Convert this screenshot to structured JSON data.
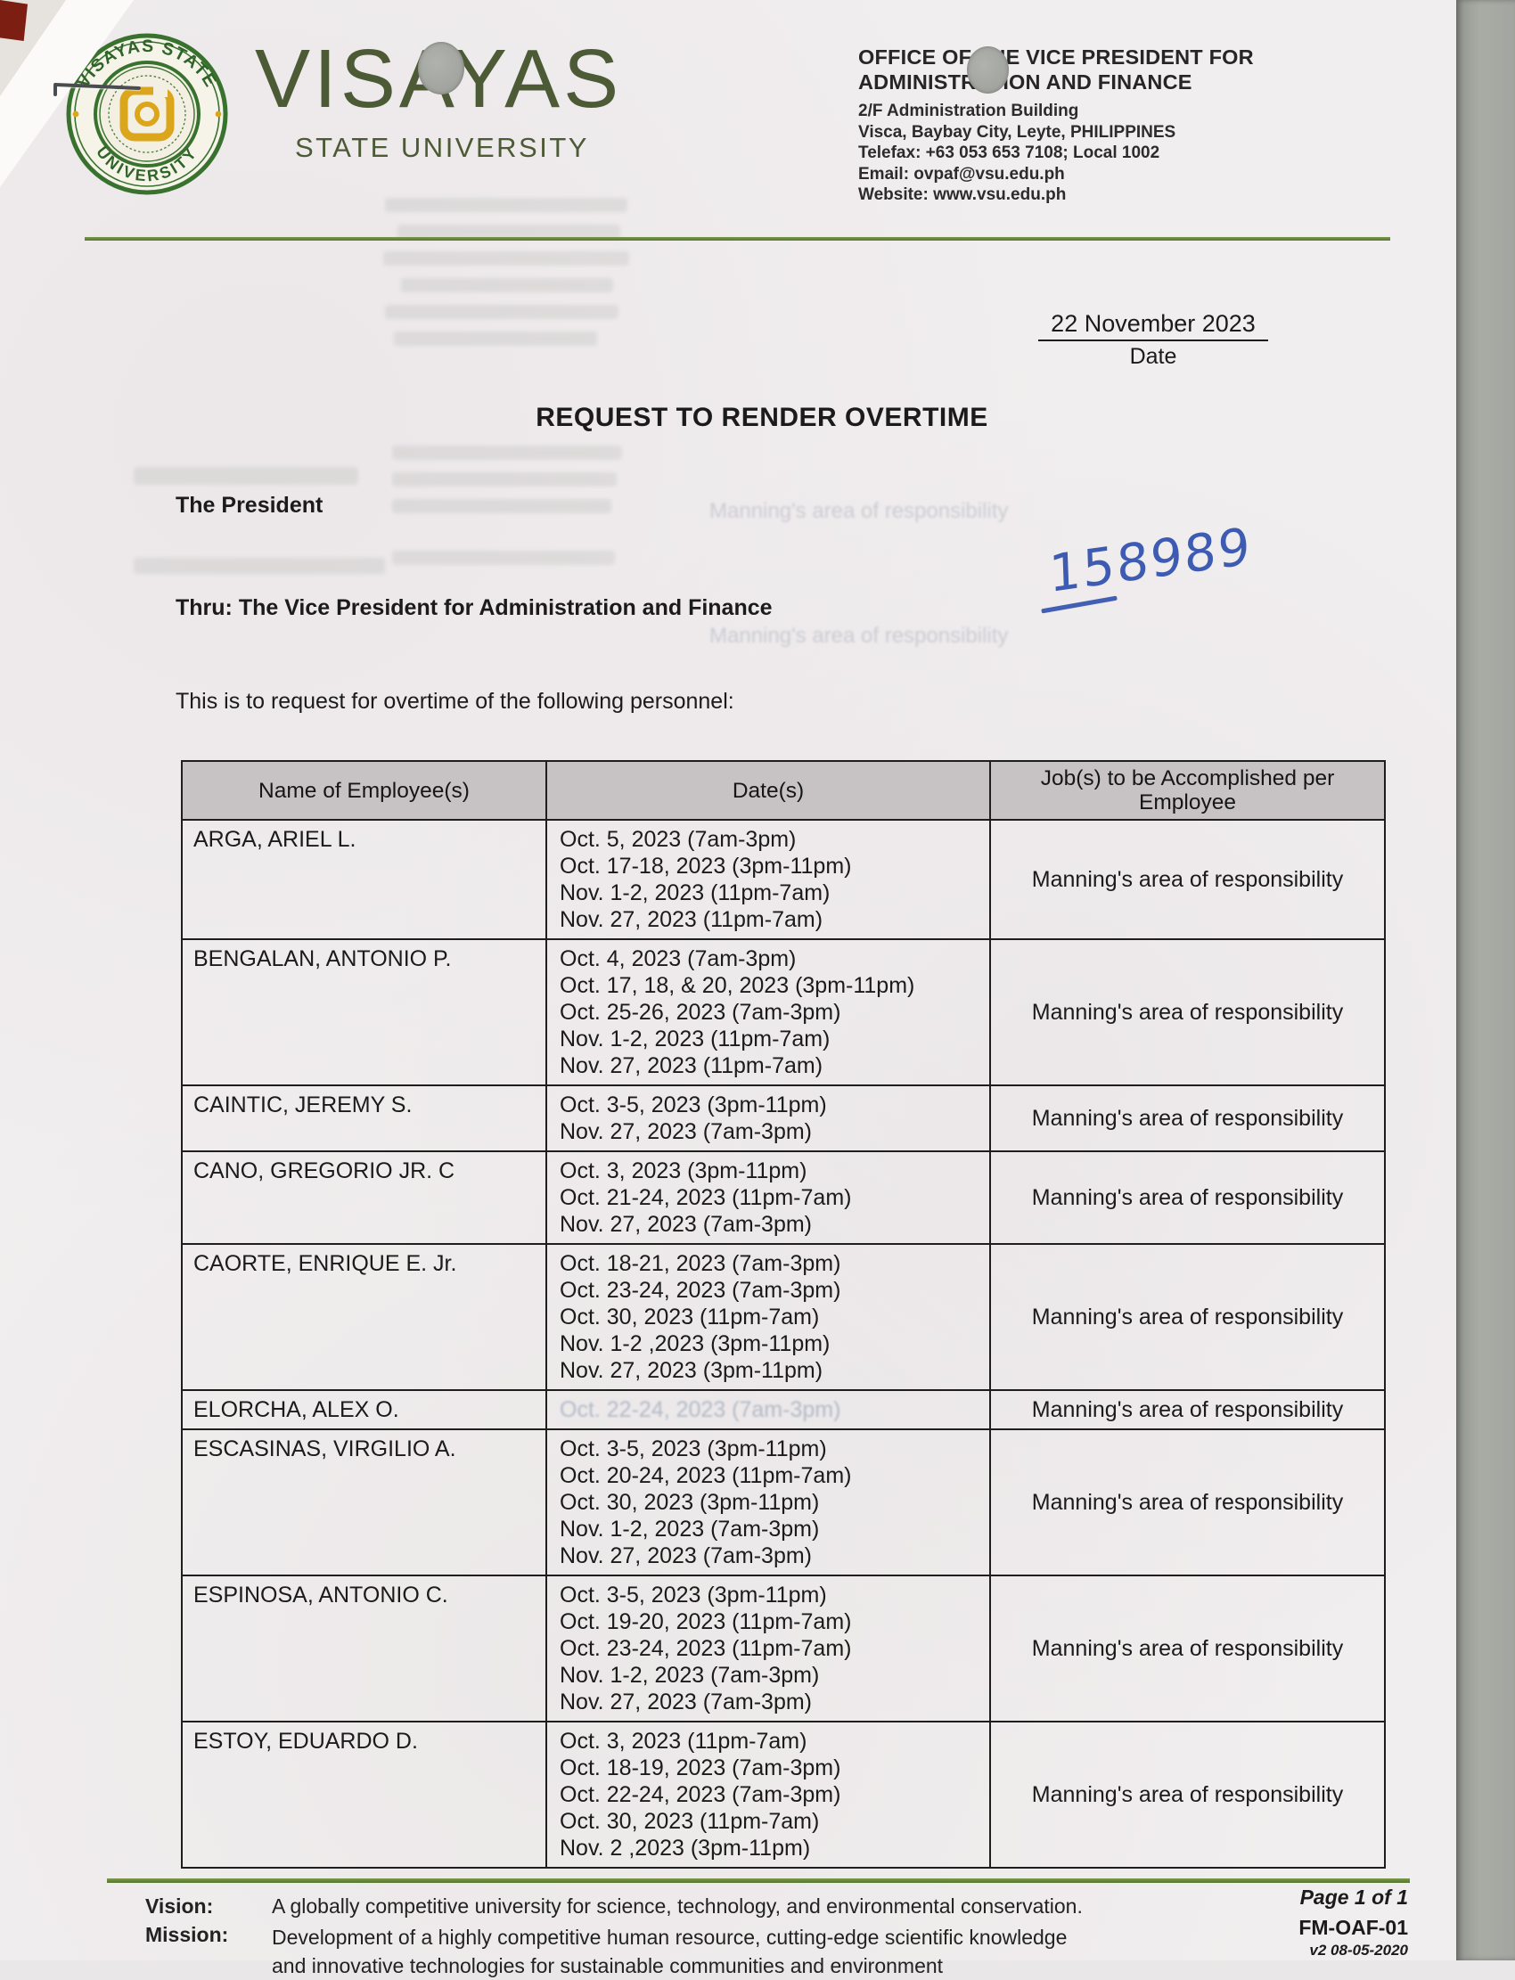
{
  "header": {
    "seal": {
      "top_text": "VISAYAS STATE",
      "bottom_text": "UNIVERSITY",
      "ring_color": "#39722f",
      "emblem_color": "#dca61c"
    },
    "wordmark": "VISAYAS",
    "wordmark_sub": "STATE UNIVERSITY",
    "wordmark_color": "#4c5a35",
    "office": {
      "title_line1": "OFFICE OF THE VICE PRESIDENT FOR",
      "title_line2": "ADMINISTRATION AND FINANCE",
      "address_lines": [
        "2/F Administration Building",
        "Visca, Baybay City, Leyte, PHILIPPINES",
        "Telefax: +63 053 653 7108; Local 1002",
        "Email: ovpaf@vsu.edu.ph",
        "Website: www.vsu.edu.ph"
      ]
    },
    "rule_color": "#55742e"
  },
  "date_block": {
    "value": "22 November 2023",
    "label": "Date"
  },
  "document_title": "REQUEST TO RENDER OVERTIME",
  "addressee": "The President",
  "thru": "Thru: The Vice President for Administration and Finance",
  "intro": "This is to request for overtime of the following personnel:",
  "handwritten_number": {
    "value": "158989",
    "ink_color": "#2f4fae"
  },
  "table": {
    "headers": [
      "Name of Employee(s)",
      "Date(s)",
      "Job(s) to be Accomplished per Employee"
    ],
    "header_bg": "#c7c3c5",
    "rows": [
      {
        "name": "ARGA, ARIEL L.",
        "dates": [
          "Oct. 5, 2023 (7am-3pm)",
          "Oct. 17-18, 2023 (3pm-11pm)",
          "Nov. 1-2, 2023 (11pm-7am)",
          "Nov. 27, 2023 (11pm-7am)"
        ],
        "job": "Manning's area of responsibility"
      },
      {
        "name": "BENGALAN, ANTONIO P.",
        "dates": [
          "Oct. 4, 2023 (7am-3pm)",
          "Oct. 17, 18, & 20, 2023 (3pm-11pm)",
          "Oct. 25-26, 2023 (7am-3pm)",
          "Nov. 1-2, 2023 (11pm-7am)",
          "Nov. 27, 2023 (11pm-7am)"
        ],
        "job": "Manning's area of responsibility"
      },
      {
        "name": "CAINTIC, JEREMY S.",
        "dates": [
          "Oct. 3-5, 2023 (3pm-11pm)",
          "Nov. 27, 2023 (7am-3pm)"
        ],
        "job": "Manning's area of responsibility"
      },
      {
        "name": "CANO, GREGORIO JR. C",
        "dates": [
          "Oct. 3, 2023 (3pm-11pm)",
          "Oct. 21-24, 2023 (11pm-7am)",
          "Nov. 27, 2023 (7am-3pm)"
        ],
        "job": "Manning's area of responsibility"
      },
      {
        "name": "CAORTE, ENRIQUE E. Jr.",
        "dates": [
          "Oct. 18-21, 2023 (7am-3pm)",
          "Oct. 23-24, 2023 (7am-3pm)",
          "Oct. 30, 2023 (11pm-7am)",
          "Nov. 1-2 ,2023 (3pm-11pm)",
          "Nov. 27, 2023 (3pm-11pm)"
        ],
        "job": "Manning's area of responsibility"
      },
      {
        "name": "ELORCHA, ALEX O.",
        "dates": [],
        "ghost_dates": "Oct. 22-24, 2023 (7am-3pm)",
        "job": "Manning's area of responsibility"
      },
      {
        "name": "ESCASINAS, VIRGILIO A.",
        "dates": [
          "Oct. 3-5, 2023 (3pm-11pm)",
          "Oct. 20-24, 2023 (11pm-7am)",
          "Oct. 30, 2023 (3pm-11pm)",
          "Nov. 1-2, 2023 (7am-3pm)",
          "Nov. 27, 2023 (7am-3pm)"
        ],
        "job": "Manning's area of responsibility"
      },
      {
        "name": "ESPINOSA, ANTONIO C.",
        "dates": [
          "Oct. 3-5, 2023 (3pm-11pm)",
          "Oct. 19-20, 2023 (11pm-7am)",
          "Oct. 23-24, 2023 (11pm-7am)",
          "Nov. 1-2, 2023 (7am-3pm)",
          "Nov. 27, 2023 (7am-3pm)"
        ],
        "job": "Manning's area of responsibility"
      },
      {
        "name": "ESTOY, EDUARDO D.",
        "dates": [
          "Oct. 3, 2023 (11pm-7am)",
          "Oct. 18-19, 2023 (7am-3pm)",
          "Oct. 22-24, 2023 (7am-3pm)",
          "Oct. 30, 2023 (11pm-7am)",
          "Nov. 2 ,2023 (3pm-11pm)"
        ],
        "job": "Manning's area of responsibility"
      }
    ]
  },
  "bleedthrough": {
    "manning_ghost": "Manning's area of responsibility"
  },
  "footer": {
    "vision_label": "Vision:",
    "vision_text": "A globally competitive university for science, technology, and environmental conservation.",
    "mission_label": "Mission:",
    "mission_lines": [
      "Development of a highly competitive human resource, cutting-edge scientific knowledge",
      "and innovative technologies for sustainable communities and environment"
    ],
    "page_number": "Page 1 of 1",
    "form_code": "FM-OAF-01",
    "form_version": "v2 08-05-2020"
  }
}
